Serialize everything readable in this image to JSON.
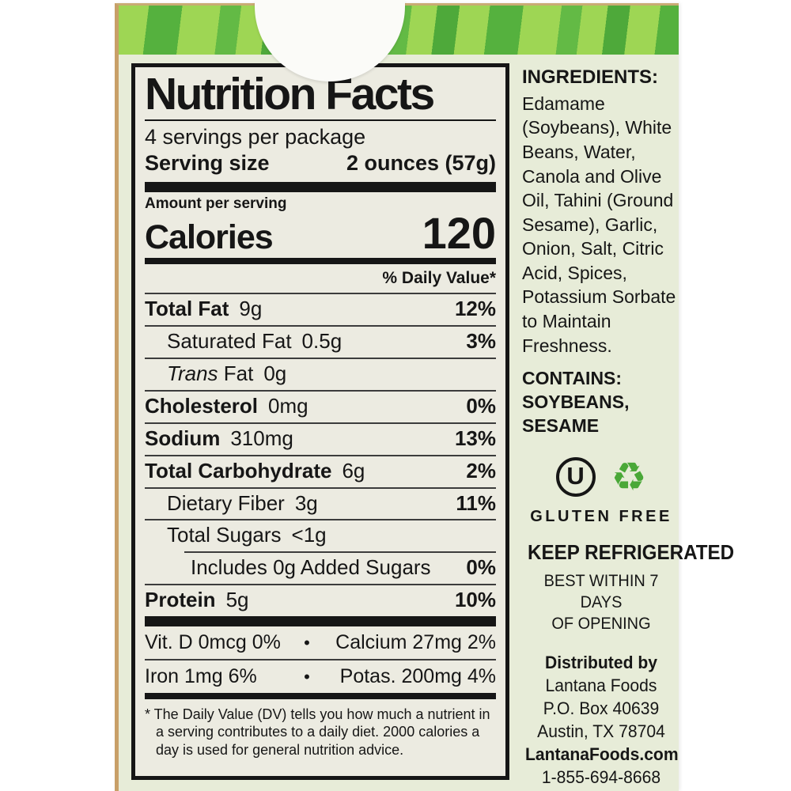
{
  "colors": {
    "label_background": "#e7ecd8",
    "panel_background": "#ecebe1",
    "band_light_green": "#9ed654",
    "band_stripe_green": "#55b13e",
    "box_edge_tan": "#c89f68",
    "recycle_green": "#4aa838",
    "text": "#161616"
  },
  "nutrition_panel": {
    "title": "Nutrition Facts",
    "servings_per_package": "4 servings per package",
    "serving_size_label": "Serving size",
    "serving_size_value": "2 ounces (57g)",
    "amount_per_serving_label": "Amount per serving",
    "calories_label": "Calories",
    "calories_value": "120",
    "daily_value_header": "% Daily Value*",
    "rows": [
      {
        "name": "Total Fat",
        "amount": "9g",
        "dv": "12%"
      },
      {
        "name": "Saturated Fat",
        "amount": "0.5g",
        "dv": "3%"
      },
      {
        "name_italic": "Trans",
        "name": "Fat",
        "amount": "0g",
        "dv": ""
      },
      {
        "name": "Cholesterol",
        "amount": "0mg",
        "dv": "0%"
      },
      {
        "name": "Sodium",
        "amount": "310mg",
        "dv": "13%"
      },
      {
        "name": "Total Carbohydrate",
        "amount": "6g",
        "dv": "2%"
      },
      {
        "name": "Dietary Fiber",
        "amount": "3g",
        "dv": "11%"
      },
      {
        "name": "Total Sugars",
        "amount": "<1g",
        "dv": ""
      },
      {
        "name": "Includes 0g Added Sugars",
        "amount": "",
        "dv": "0%"
      },
      {
        "name": "Protein",
        "amount": "5g",
        "dv": "10%"
      }
    ],
    "micronutrients": [
      {
        "left": "Vit. D 0mcg 0%",
        "bullet": "•",
        "right": "Calcium 27mg 2%"
      },
      {
        "left": "Iron 1mg 6%",
        "bullet": "•",
        "right": "Potas. 200mg 4%"
      }
    ],
    "footnote": "* The Daily Value (DV) tells you how much a nutrient in a serving contributes to a daily diet. 2000 calories a day is used for general nutrition advice."
  },
  "side_panel": {
    "ingredients_title": "INGREDIENTS:",
    "ingredients_text": "Edamame (Soybeans), White Beans, Water, Canola and Olive Oil, Tahini (Ground Sesame), Garlic, Onion, Salt, Citric Acid, Spices, Potassium Sorbate to Maintain Freshness.",
    "contains_text": "CONTAINS: SOYBEANS, SESAME",
    "kosher_letter": "U",
    "recycle_symbol": "♻",
    "gluten_free_label": "GLUTEN FREE",
    "keep_refrigerated": "KEEP REFRIGERATED",
    "best_within_line1": "BEST WITHIN 7 DAYS",
    "best_within_line2": "OF OPENING",
    "distributed_by": "Distributed by",
    "distributor": "Lantana Foods",
    "address_po_box": "P.O. Box 40639",
    "address_city": "Austin, TX 78704",
    "website": "LantanaFoods.com",
    "phone": "1-855-694-8668"
  }
}
